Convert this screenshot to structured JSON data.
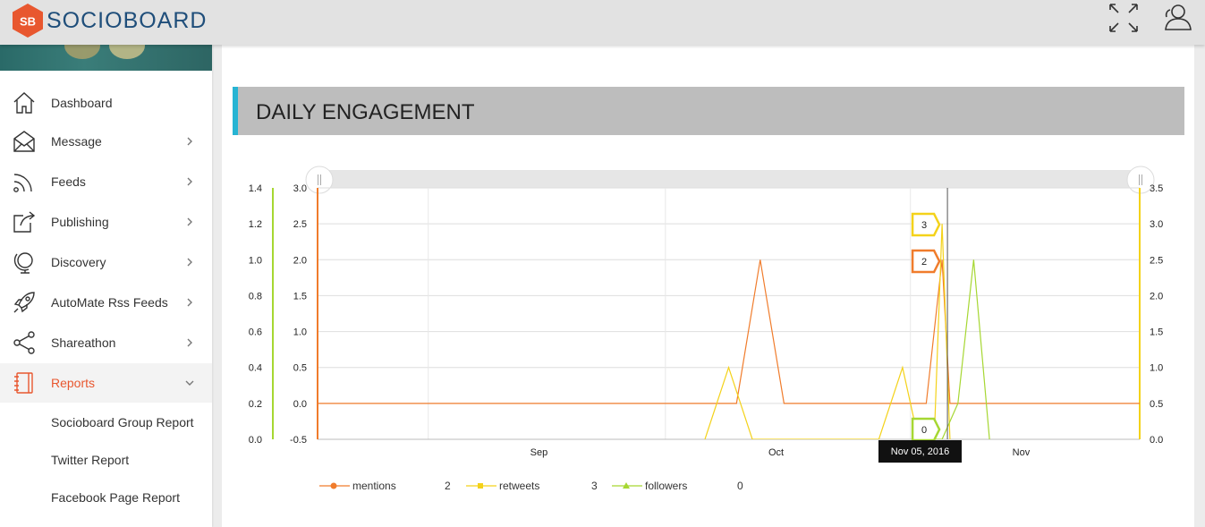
{
  "app": {
    "logo_badge": "SB",
    "logo_text": "SOCIOBOARD"
  },
  "topbar": {
    "icons": [
      "fullscreen-icon",
      "user-icon"
    ]
  },
  "sidebar": {
    "items": [
      {
        "label": "Dashboard",
        "icon": "home-icon",
        "has_chevron": false
      },
      {
        "label": "Message",
        "icon": "envelope-icon",
        "has_chevron": true
      },
      {
        "label": "Feeds",
        "icon": "rss-icon",
        "has_chevron": true
      },
      {
        "label": "Publishing",
        "icon": "share-box-icon",
        "has_chevron": true
      },
      {
        "label": "Discovery",
        "icon": "globe-icon",
        "has_chevron": true
      },
      {
        "label": "AutoMate Rss Feeds",
        "icon": "rocket-icon",
        "has_chevron": true
      },
      {
        "label": "Shareathon",
        "icon": "share-nodes-icon",
        "has_chevron": true
      },
      {
        "label": "Reports",
        "icon": "notebook-icon",
        "has_chevron": true,
        "active": true
      }
    ],
    "report_subitems": [
      "Socioboard Group Report",
      "Twitter Report",
      "Facebook Page Report"
    ]
  },
  "main": {
    "section_title": "DAILY ENGAGEMENT"
  },
  "colors": {
    "accent": "#e8572f",
    "header_bar": "#27b4d3",
    "mentions": "#f07c2c",
    "retweets": "#f4d21a",
    "followers": "#a6d732"
  },
  "chart_data": {
    "type": "line",
    "x_labels": [
      "Sep",
      "Oct",
      "Nov"
    ],
    "x_domain": [
      "2016-08-18",
      "2016-11-30"
    ],
    "y_axes": [
      {
        "series": "followers",
        "range": [
          0,
          1.4
        ],
        "ticks": [
          "0.0",
          "0.2",
          "0.4",
          "0.6",
          "0.8",
          "1.0",
          "1.2",
          "1.4"
        ]
      },
      {
        "series": "mentions",
        "range": [
          -0.5,
          3.0
        ],
        "ticks": [
          "-0.5",
          "0.0",
          "0.5",
          "1.0",
          "1.5",
          "2.0",
          "2.5",
          "3.0"
        ]
      },
      {
        "series": "retweets",
        "range": [
          0,
          3.5
        ],
        "ticks": [
          "0.0",
          "0.5",
          "1.0",
          "1.5",
          "2.0",
          "2.5",
          "3.0",
          "3.5"
        ]
      }
    ],
    "series": [
      {
        "name": "mentions",
        "color": "#f07c2c",
        "points": [
          [
            "2016-08-18",
            0
          ],
          [
            "2016-10-10",
            0
          ],
          [
            "2016-10-13",
            2
          ],
          [
            "2016-10-16",
            0
          ],
          [
            "2016-11-03",
            0
          ],
          [
            "2016-11-05",
            2
          ],
          [
            "2016-11-06",
            0
          ],
          [
            "2016-11-30",
            0
          ]
        ]
      },
      {
        "name": "retweets",
        "color": "#f4d21a",
        "points": [
          [
            "2016-10-06",
            0
          ],
          [
            "2016-10-09",
            1
          ],
          [
            "2016-10-12",
            0
          ],
          [
            "2016-10-28",
            0
          ],
          [
            "2016-10-31",
            1
          ],
          [
            "2016-11-02",
            0
          ],
          [
            "2016-11-04",
            0
          ],
          [
            "2016-11-05",
            3
          ],
          [
            "2016-11-06",
            0
          ]
        ]
      },
      {
        "name": "followers",
        "color": "#a6d732",
        "points": [
          [
            "2016-11-04",
            0
          ],
          [
            "2016-11-05",
            0
          ],
          [
            "2016-11-07",
            0.2
          ],
          [
            "2016-11-09",
            1.0
          ],
          [
            "2016-11-11",
            0
          ]
        ]
      }
    ],
    "tooltip": {
      "date": "Nov 05, 2016",
      "mentions": "2",
      "retweets": "3",
      "followers": "0"
    },
    "legend": [
      {
        "name": "mentions",
        "value": "2",
        "marker": "circle"
      },
      {
        "name": "retweets",
        "value": "3",
        "marker": "square"
      },
      {
        "name": "followers",
        "value": "0",
        "marker": "triangle"
      }
    ]
  }
}
